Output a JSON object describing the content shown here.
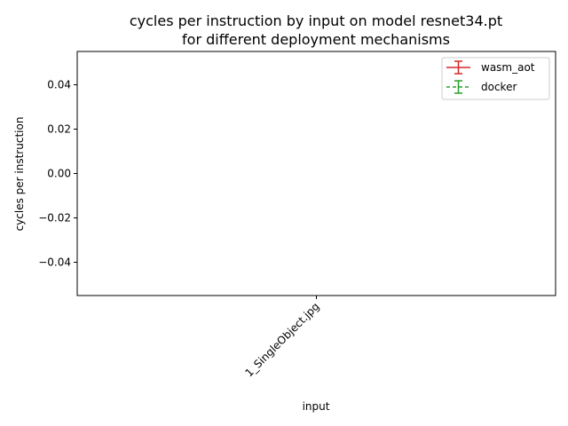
{
  "chart_data": {
    "type": "line",
    "title": [
      "cycles per instruction by input on model resnet34.pt",
      "for different deployment mechanisms"
    ],
    "xlabel": "input",
    "ylabel": "cycles per instruction",
    "categories": [
      "1_SingleObject.jpg"
    ],
    "ylim": [
      -0.055,
      0.055
    ],
    "yticks": [
      -0.04,
      -0.02,
      0.0,
      0.02,
      0.04
    ],
    "ytick_labels": [
      "−0.04",
      "−0.02",
      "0.00",
      "0.02",
      "0.04"
    ],
    "xtick_rotation": 45,
    "grid": false,
    "legend_position": "top-right",
    "series": [
      {
        "name": "wasm_aot",
        "color": "#d62728",
        "linestyle": "solid",
        "values": [
          null
        ]
      },
      {
        "name": "docker",
        "color": "#2ca02c",
        "linestyle": "dashed",
        "values": [
          null
        ]
      }
    ]
  }
}
